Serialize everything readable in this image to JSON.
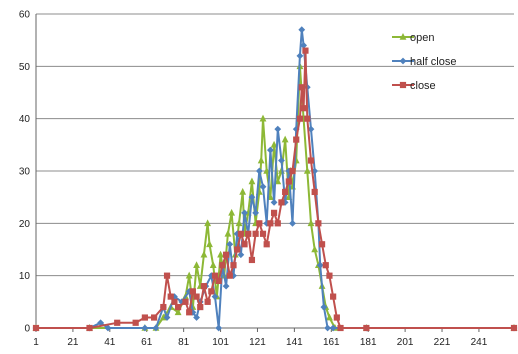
{
  "chart_data": {
    "type": "line",
    "title": "",
    "xlabel": "",
    "ylabel": "",
    "xlim": [
      1,
      260
    ],
    "ylim": [
      0,
      60
    ],
    "grid": "horizontal",
    "legend_position": "top-right",
    "xticks": [
      1,
      21,
      41,
      61,
      81,
      101,
      121,
      141,
      161,
      181,
      201,
      221,
      241
    ],
    "yticks": [
      0,
      10,
      20,
      30,
      40,
      50,
      60
    ],
    "series": [
      {
        "name": "open",
        "color": "#8DB836",
        "marker": "triangle",
        "points": [
          [
            1,
            0
          ],
          [
            30,
            0
          ],
          [
            60,
            0
          ],
          [
            66,
            0
          ],
          [
            70,
            2
          ],
          [
            74,
            4
          ],
          [
            78,
            3
          ],
          [
            82,
            6
          ],
          [
            84,
            10
          ],
          [
            86,
            4
          ],
          [
            88,
            12
          ],
          [
            90,
            8
          ],
          [
            92,
            14
          ],
          [
            94,
            20
          ],
          [
            95,
            16
          ],
          [
            97,
            12
          ],
          [
            99,
            6
          ],
          [
            101,
            14
          ],
          [
            103,
            10
          ],
          [
            105,
            18
          ],
          [
            107,
            22
          ],
          [
            109,
            14
          ],
          [
            111,
            20
          ],
          [
            113,
            26
          ],
          [
            114,
            18
          ],
          [
            116,
            22
          ],
          [
            118,
            28
          ],
          [
            120,
            20
          ],
          [
            122,
            26
          ],
          [
            123,
            32
          ],
          [
            124,
            40
          ],
          [
            126,
            30
          ],
          [
            128,
            25
          ],
          [
            130,
            35
          ],
          [
            132,
            28
          ],
          [
            134,
            30
          ],
          [
            136,
            36
          ],
          [
            138,
            25
          ],
          [
            139,
            30
          ],
          [
            140,
            27
          ],
          [
            142,
            32
          ],
          [
            144,
            50
          ],
          [
            146,
            40
          ],
          [
            148,
            30
          ],
          [
            150,
            20
          ],
          [
            152,
            15
          ],
          [
            154,
            12
          ],
          [
            156,
            8
          ],
          [
            158,
            4
          ],
          [
            160,
            2
          ],
          [
            163,
            0
          ],
          [
            180,
            0
          ],
          [
            260,
            0
          ]
        ]
      },
      {
        "name": "half close",
        "color": "#4F81BD",
        "marker": "diamond",
        "points": [
          [
            1,
            0
          ],
          [
            30,
            0
          ],
          [
            36,
            1
          ],
          [
            40,
            0
          ],
          [
            60,
            0
          ],
          [
            66,
            0
          ],
          [
            70,
            4
          ],
          [
            72,
            2
          ],
          [
            76,
            6
          ],
          [
            80,
            5
          ],
          [
            84,
            7
          ],
          [
            86,
            3
          ],
          [
            88,
            2
          ],
          [
            90,
            5
          ],
          [
            93,
            8
          ],
          [
            96,
            10
          ],
          [
            98,
            6
          ],
          [
            100,
            0
          ],
          [
            102,
            12
          ],
          [
            104,
            8
          ],
          [
            106,
            16
          ],
          [
            108,
            10
          ],
          [
            110,
            18
          ],
          [
            112,
            14
          ],
          [
            114,
            22
          ],
          [
            116,
            18
          ],
          [
            118,
            25
          ],
          [
            120,
            22
          ],
          [
            122,
            30
          ],
          [
            124,
            27
          ],
          [
            126,
            20
          ],
          [
            128,
            34
          ],
          [
            130,
            24
          ],
          [
            132,
            38
          ],
          [
            134,
            32
          ],
          [
            136,
            24
          ],
          [
            138,
            30
          ],
          [
            140,
            20
          ],
          [
            142,
            38
          ],
          [
            144,
            52
          ],
          [
            145,
            57
          ],
          [
            146,
            54
          ],
          [
            148,
            46
          ],
          [
            150,
            38
          ],
          [
            152,
            30
          ],
          [
            154,
            20
          ],
          [
            155,
            12
          ],
          [
            157,
            4
          ],
          [
            159,
            0
          ],
          [
            162,
            0
          ],
          [
            180,
            0
          ],
          [
            260,
            0
          ]
        ]
      },
      {
        "name": "close",
        "color": "#C0504D",
        "marker": "square",
        "points": [
          [
            1,
            0
          ],
          [
            30,
            0
          ],
          [
            45,
            1
          ],
          [
            55,
            1
          ],
          [
            60,
            2
          ],
          [
            65,
            2
          ],
          [
            70,
            4
          ],
          [
            72,
            10
          ],
          [
            74,
            6
          ],
          [
            76,
            5
          ],
          [
            78,
            4
          ],
          [
            82,
            5
          ],
          [
            84,
            3
          ],
          [
            86,
            7
          ],
          [
            88,
            6
          ],
          [
            90,
            4
          ],
          [
            92,
            8
          ],
          [
            94,
            5
          ],
          [
            96,
            7
          ],
          [
            98,
            10
          ],
          [
            100,
            9
          ],
          [
            102,
            12
          ],
          [
            104,
            14
          ],
          [
            106,
            10
          ],
          [
            108,
            12
          ],
          [
            110,
            15
          ],
          [
            112,
            18
          ],
          [
            114,
            16
          ],
          [
            116,
            18
          ],
          [
            118,
            13
          ],
          [
            120,
            18
          ],
          [
            122,
            20
          ],
          [
            124,
            18
          ],
          [
            126,
            16
          ],
          [
            128,
            20
          ],
          [
            130,
            22
          ],
          [
            132,
            20
          ],
          [
            134,
            24
          ],
          [
            136,
            26
          ],
          [
            138,
            28
          ],
          [
            140,
            30
          ],
          [
            142,
            36
          ],
          [
            144,
            40
          ],
          [
            145,
            46
          ],
          [
            146,
            42
          ],
          [
            147,
            53
          ],
          [
            148,
            40
          ],
          [
            150,
            32
          ],
          [
            152,
            26
          ],
          [
            154,
            20
          ],
          [
            156,
            16
          ],
          [
            158,
            12
          ],
          [
            160,
            10
          ],
          [
            162,
            6
          ],
          [
            164,
            2
          ],
          [
            166,
            0
          ],
          [
            180,
            0
          ],
          [
            260,
            0
          ]
        ]
      }
    ]
  }
}
